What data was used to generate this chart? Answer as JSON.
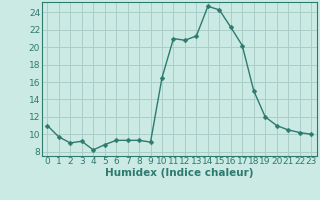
{
  "x": [
    0,
    1,
    2,
    3,
    4,
    5,
    6,
    7,
    8,
    9,
    10,
    11,
    12,
    13,
    14,
    15,
    16,
    17,
    18,
    19,
    20,
    21,
    22,
    23
  ],
  "y": [
    11.0,
    9.7,
    9.0,
    9.2,
    8.2,
    8.8,
    9.3,
    9.3,
    9.3,
    9.1,
    16.5,
    21.0,
    20.8,
    21.3,
    24.7,
    24.3,
    22.3,
    20.2,
    15.0,
    12.0,
    11.0,
    10.5,
    10.2,
    10.0
  ],
  "line_color": "#2d7a6e",
  "marker": "D",
  "marker_size": 2.5,
  "bg_color": "#cceae4",
  "grid_color": "#aacfc8",
  "xlabel": "Humidex (Indice chaleur)",
  "xlim": [
    -0.5,
    23.5
  ],
  "ylim": [
    7.5,
    25.2
  ],
  "yticks": [
    8,
    10,
    12,
    14,
    16,
    18,
    20,
    22,
    24
  ],
  "xticks": [
    0,
    1,
    2,
    3,
    4,
    5,
    6,
    7,
    8,
    9,
    10,
    11,
    12,
    13,
    14,
    15,
    16,
    17,
    18,
    19,
    20,
    21,
    22,
    23
  ],
  "tick_color": "#2d7a6e",
  "xlabel_fontsize": 7.5,
  "tick_fontsize": 6.5,
  "linewidth": 1.0
}
